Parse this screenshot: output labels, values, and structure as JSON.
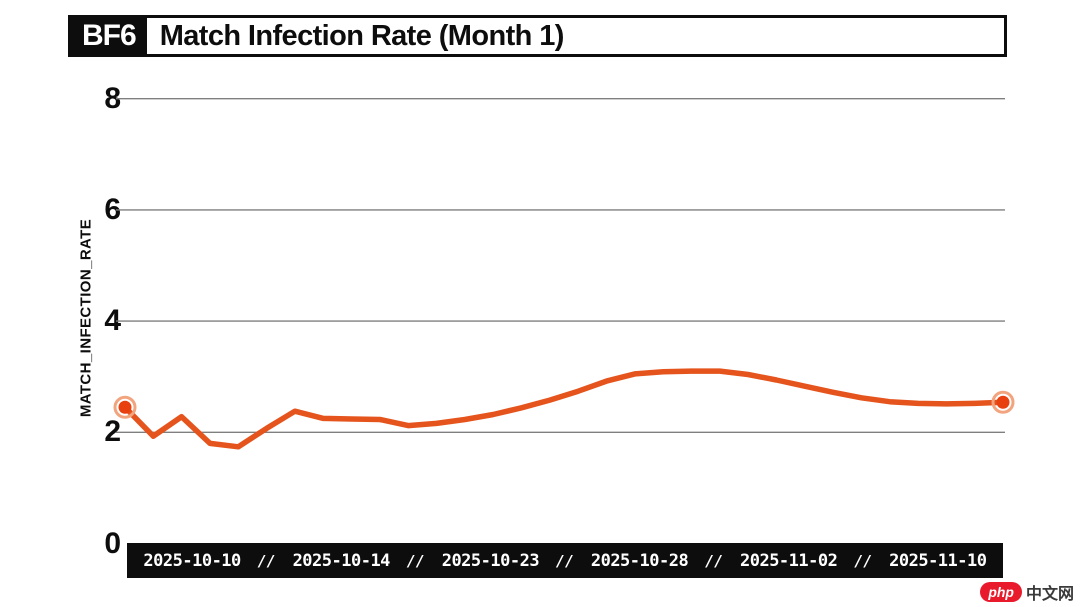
{
  "header": {
    "badge": "BF6",
    "title": "Match Infection Rate (Month 1)"
  },
  "chart_data": {
    "type": "line",
    "title": "BF6 Match Infection Rate (Month 1)",
    "ylabel": "MATCH_INFECTION_RATE",
    "ylim": [
      0,
      8
    ],
    "yticks": [
      0,
      2,
      4,
      6,
      8
    ],
    "grid": "horizontal",
    "legend": "none",
    "x_tick_labels": [
      "2025-10-10",
      "2025-10-14",
      "2025-10-23",
      "2025-10-28",
      "2025-11-02",
      "2025-11-10"
    ],
    "x_tick_separator": "//",
    "series": [
      {
        "name": "match_infection_rate",
        "values": [
          2.45,
          1.93,
          2.28,
          1.8,
          1.74,
          2.07,
          2.38,
          2.25,
          2.24,
          2.23,
          2.12,
          2.16,
          2.23,
          2.32,
          2.44,
          2.58,
          2.74,
          2.92,
          3.05,
          3.09,
          3.1,
          3.1,
          3.04,
          2.94,
          2.83,
          2.72,
          2.62,
          2.55,
          2.52,
          2.51,
          2.52,
          2.54
        ],
        "endpoint_markers": "first_and_last"
      }
    ],
    "colors": {
      "line": "#e5541d",
      "marker": "#e8400f",
      "marker_ring": "#f2a47e",
      "grid": "#7f7f7f",
      "axis_bar_bg": "#0d0d0d",
      "axis_bar_text": "#ffffff",
      "text": "#0d0d0d"
    }
  },
  "watermark": {
    "badge": "php",
    "text": "中文网"
  }
}
